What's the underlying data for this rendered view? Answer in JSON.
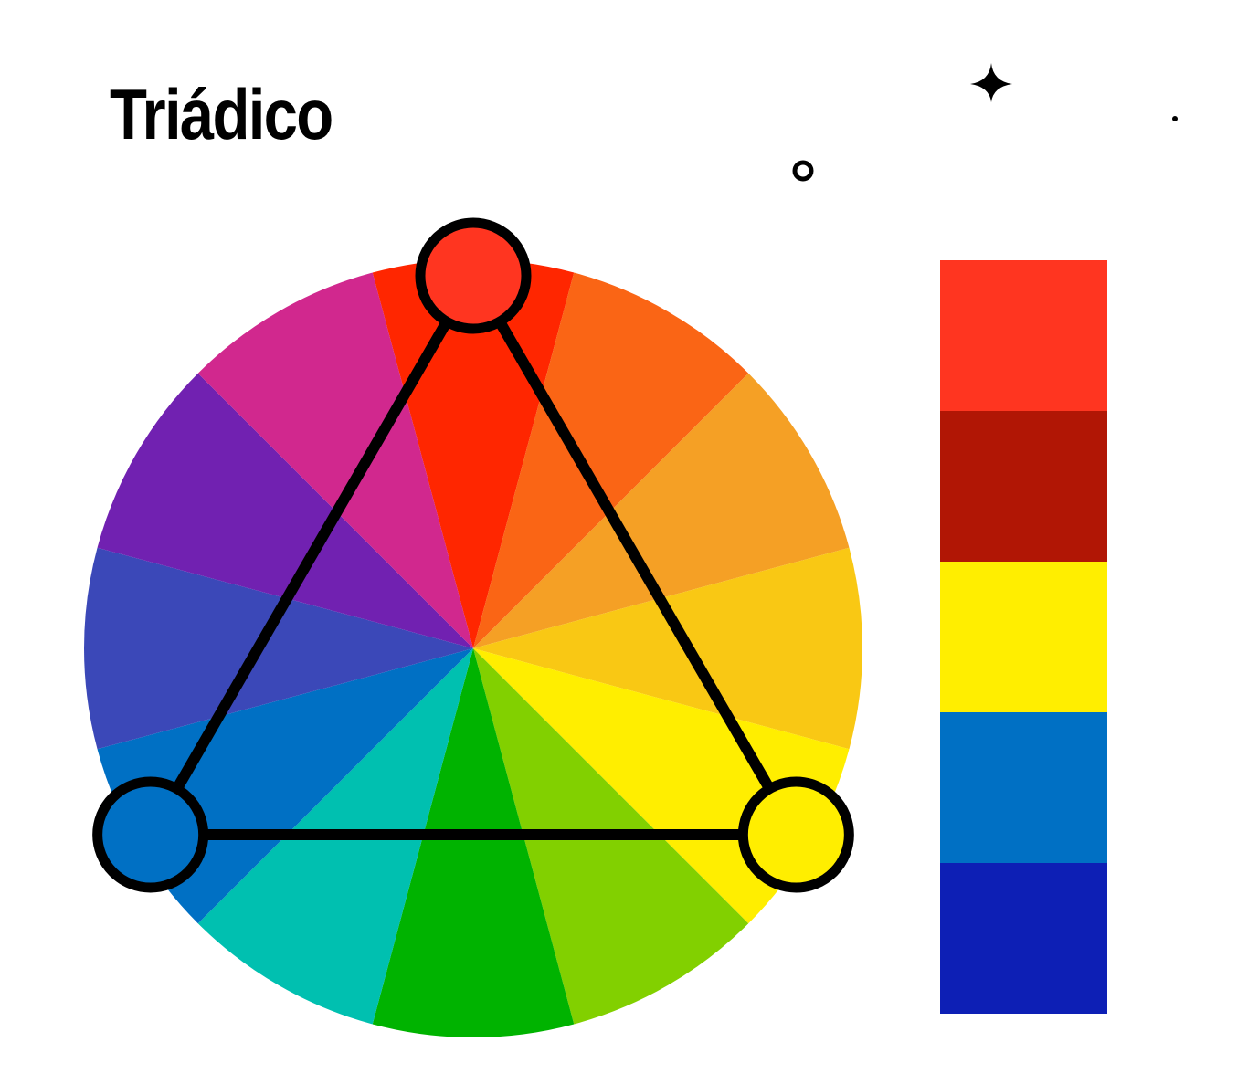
{
  "title": "Triádico",
  "wheel": {
    "segments": [
      {
        "hue": "red",
        "color": "#FF2600"
      },
      {
        "hue": "red-orange",
        "color": "#FA6515"
      },
      {
        "hue": "orange",
        "color": "#F5A025"
      },
      {
        "hue": "yellow-orange",
        "color": "#F9C814"
      },
      {
        "hue": "yellow",
        "color": "#FFEE00"
      },
      {
        "hue": "yellow-green",
        "color": "#82D000"
      },
      {
        "hue": "green",
        "color": "#00B300"
      },
      {
        "hue": "blue-green",
        "color": "#00C0B0"
      },
      {
        "hue": "blue",
        "color": "#0070C4"
      },
      {
        "hue": "blue-violet",
        "color": "#3B48B8"
      },
      {
        "hue": "violet",
        "color": "#7121B1"
      },
      {
        "hue": "red-violet",
        "color": "#D1288E"
      }
    ],
    "triad_markers": [
      {
        "name": "red",
        "color": "#FF3520"
      },
      {
        "name": "yellow",
        "color": "#FFEE00"
      },
      {
        "name": "blue",
        "color": "#0070C4"
      }
    ]
  },
  "palette": [
    {
      "name": "red",
      "color": "#FF3520"
    },
    {
      "name": "dark-red",
      "color": "#B11605"
    },
    {
      "name": "yellow",
      "color": "#FFEE00"
    },
    {
      "name": "blue",
      "color": "#0070C4"
    },
    {
      "name": "dark-blue",
      "color": "#0D1FB5"
    }
  ],
  "decorations": [
    "sparkle-icon",
    "ring-icon",
    "dot-icon"
  ]
}
